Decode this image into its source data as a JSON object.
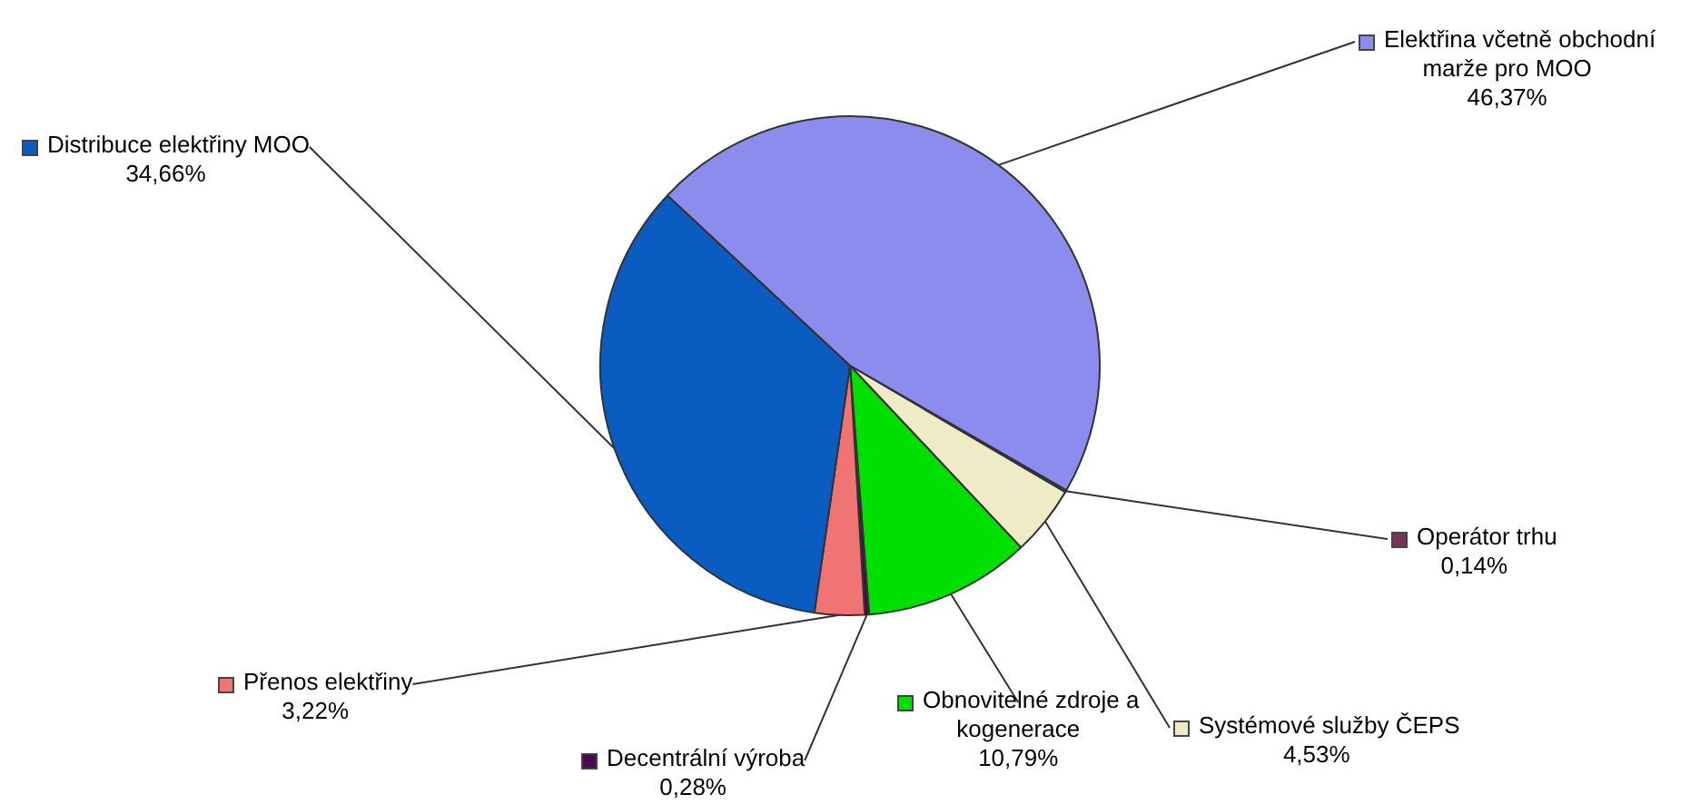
{
  "chart_data": {
    "type": "pie",
    "categories": [
      "Elektřina včetně obchodní marže pro MOO",
      "Operátor trhu",
      "Systémové služby ČEPS",
      "Obnovitelné zdroje a kogenerace",
      "Decentrální výroba",
      "Přenos elektřiny",
      "Distribuce elektřiny MOO"
    ],
    "values": [
      46.37,
      0.14,
      4.53,
      10.79,
      0.28,
      3.22,
      34.66
    ],
    "value_labels": [
      "46,37%",
      "0,14%",
      "4,53%",
      "10,79%",
      "0,28%",
      "3,22%",
      "34,66%"
    ],
    "legend": "right",
    "colors": [
      "#8c8cee",
      "#7a3358",
      "#efebc6",
      "#00e000",
      "#4a0850",
      "#f07474",
      "#0a5cc0"
    ]
  }
}
